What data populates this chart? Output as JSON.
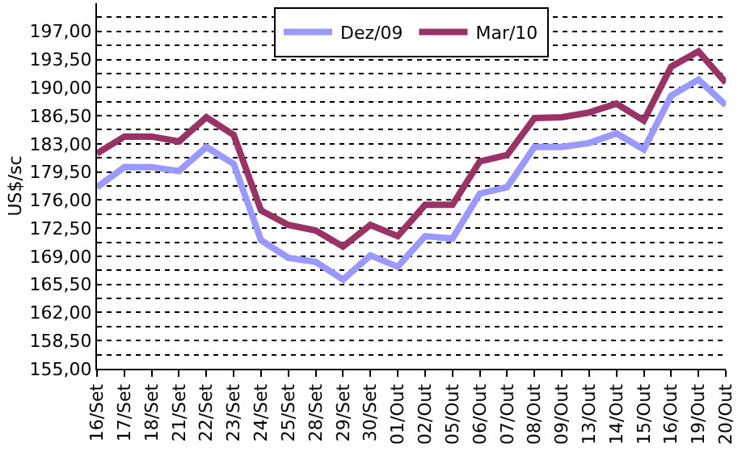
{
  "chart_data": {
    "type": "line",
    "ylabel": "US$/sc",
    "categories": [
      "16/Set",
      "17/Set",
      "18/Set",
      "21/Set",
      "22/Set",
      "23/Set",
      "24/Set",
      "25/Set",
      "28/Set",
      "29/Set",
      "30/Set",
      "01/Out",
      "02/Out",
      "05/Out",
      "06/Out",
      "07/Out",
      "08/Out",
      "09/Out",
      "13/Out",
      "14/Out",
      "15/Out",
      "16/Out",
      "19/Out",
      "20/Out"
    ],
    "series": [
      {
        "name": "Dez/09",
        "color": "#9999ff",
        "values": [
          177.6,
          180.1,
          180.1,
          179.6,
          182.6,
          180.5,
          171.0,
          168.8,
          168.3,
          166.1,
          169.1,
          167.7,
          171.5,
          171.2,
          176.8,
          177.6,
          182.6,
          182.6,
          183.1,
          184.3,
          182.3,
          189.0,
          191.0,
          187.8
        ]
      },
      {
        "name": "Mar/10",
        "color": "#993366",
        "values": [
          181.8,
          183.9,
          183.9,
          183.3,
          186.3,
          184.1,
          174.7,
          172.9,
          172.2,
          170.2,
          172.9,
          171.5,
          175.4,
          175.4,
          180.8,
          181.6,
          186.2,
          186.3,
          186.9,
          188.0,
          185.9,
          192.6,
          194.5,
          190.6
        ]
      }
    ],
    "ylim": [
      155,
      200.5
    ],
    "yticks": [
      {
        "value": 155,
        "label": "155,00"
      },
      {
        "value": 156.75,
        "label": null
      },
      {
        "value": 158.5,
        "label": "158,50"
      },
      {
        "value": 160.25,
        "label": null
      },
      {
        "value": 162,
        "label": "162,00"
      },
      {
        "value": 163.75,
        "label": null
      },
      {
        "value": 165.5,
        "label": "165,50"
      },
      {
        "value": 167.25,
        "label": null
      },
      {
        "value": 169,
        "label": "169,00"
      },
      {
        "value": 170.75,
        "label": null
      },
      {
        "value": 172.5,
        "label": "172,50"
      },
      {
        "value": 174.25,
        "label": null
      },
      {
        "value": 176,
        "label": "176,00"
      },
      {
        "value": 177.75,
        "label": null
      },
      {
        "value": 179.5,
        "label": "179,50"
      },
      {
        "value": 181.25,
        "label": null
      },
      {
        "value": 183,
        "label": "183,00"
      },
      {
        "value": 184.75,
        "label": null
      },
      {
        "value": 186.5,
        "label": "186,50"
      },
      {
        "value": 188.25,
        "label": null
      },
      {
        "value": 190,
        "label": "190,00"
      },
      {
        "value": 191.75,
        "label": null
      },
      {
        "value": 193.5,
        "label": "193,50"
      },
      {
        "value": 195.25,
        "label": null
      },
      {
        "value": 197,
        "label": "197,00"
      },
      {
        "value": 198.75,
        "label": null
      }
    ],
    "grid": "y",
    "legend": "top",
    "marker": "none",
    "line_style": "solid"
  }
}
